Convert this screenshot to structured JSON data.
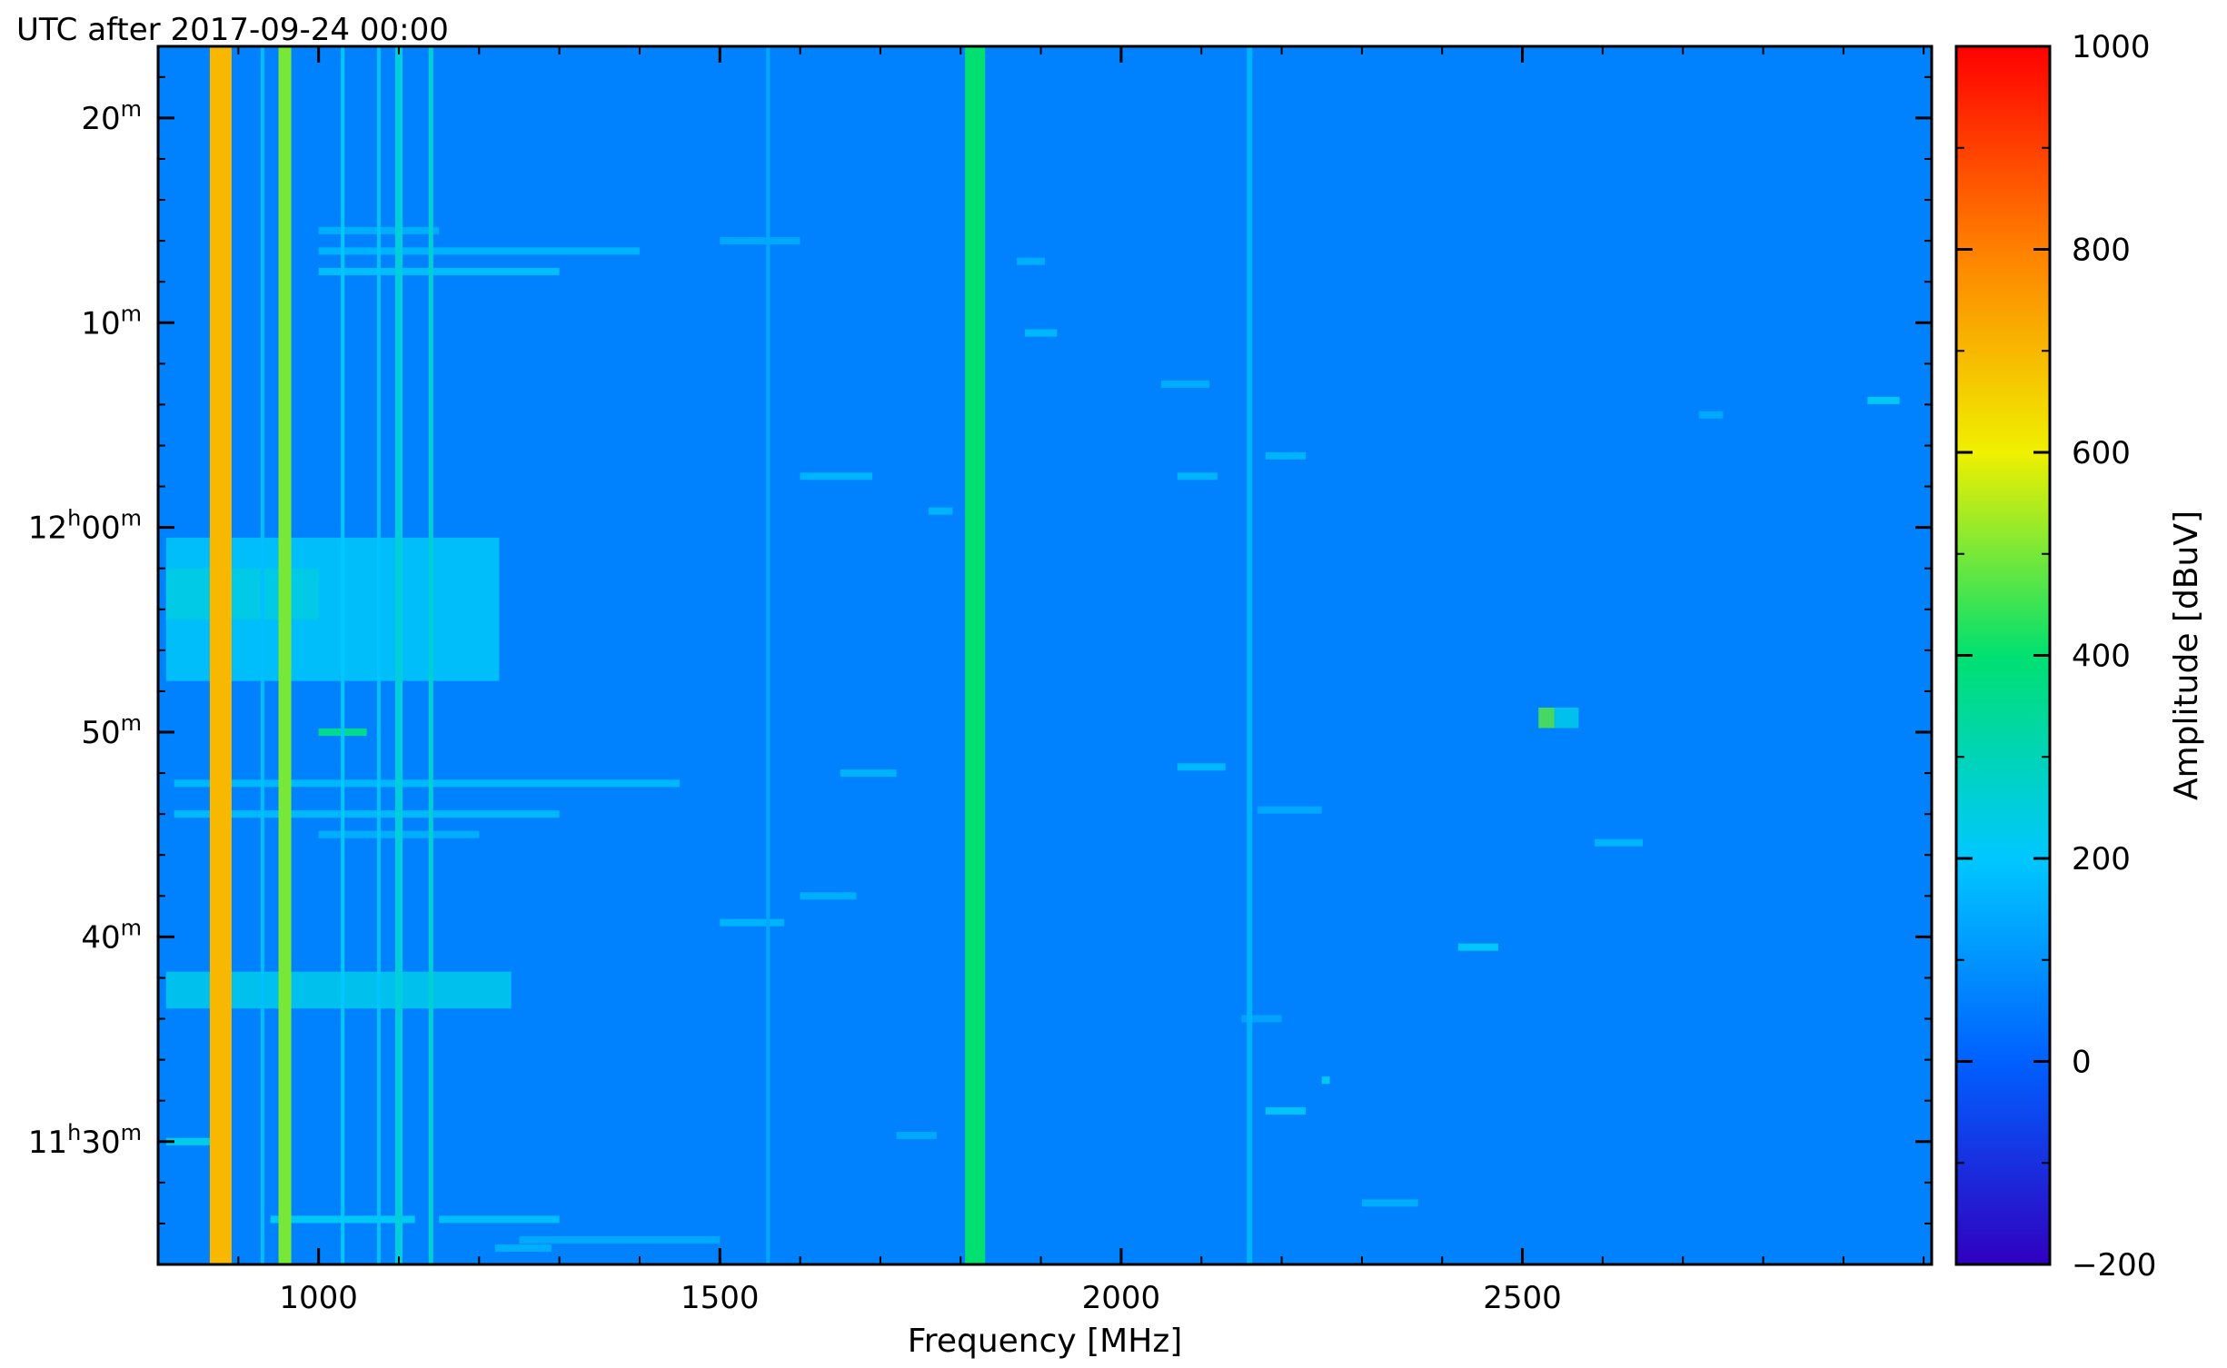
{
  "chart_data": {
    "type": "heatmap",
    "title": "UTC after 2017-09-24 00:00",
    "xlabel": "Frequency [MHz]",
    "ylabel": "",
    "xlim": [
      800,
      3010
    ],
    "ylim_minutes": [
      684,
      743.5
    ],
    "x_ticks": [
      1000,
      1500,
      2000,
      2500
    ],
    "x_tick_labels": [
      "1000",
      "1500",
      "2000",
      "2500"
    ],
    "y_ticks": [
      {
        "minute": 740,
        "label": "20",
        "sup": "m"
      },
      {
        "minute": 730,
        "label": "10",
        "sup": "m"
      },
      {
        "minute": 720,
        "label": "12",
        "sup": "h",
        "rest": "00",
        "sup2": "m"
      },
      {
        "minute": 710,
        "label": "50",
        "sup": "m"
      },
      {
        "minute": 700,
        "label": "40",
        "sup": "m"
      },
      {
        "minute": 690,
        "label": "11",
        "sup": "h",
        "rest": "30",
        "sup2": "m"
      }
    ],
    "colorbar": {
      "label": "Amplitude [dBuV]",
      "range": [
        -200,
        1000
      ],
      "ticks": [
        1000,
        800,
        600,
        400,
        200,
        0,
        -200
      ],
      "tick_labels": [
        "1000",
        "800",
        "600",
        "400",
        "200",
        "0",
        "−200"
      ],
      "colormap": [
        "#3000c0",
        "#0060ff",
        "#00c8ff",
        "#00e070",
        "#f0f000",
        "#ff8000",
        "#ff0000"
      ]
    },
    "background_amplitude": 65,
    "vertical_lines": [
      {
        "freq": 878,
        "width": 24,
        "amplitude": 700
      },
      {
        "freq": 958,
        "width": 14,
        "amplitude": 500
      },
      {
        "freq": 1818,
        "width": 22,
        "amplitude": 400
      },
      {
        "freq": 1100,
        "width": 8,
        "amplitude": 250
      },
      {
        "freq": 1140,
        "width": 5,
        "amplitude": 260
      },
      {
        "freq": 1030,
        "width": 4,
        "amplitude": 200
      },
      {
        "freq": 930,
        "width": 4,
        "amplitude": 180
      },
      {
        "freq": 2160,
        "width": 6,
        "amplitude": 160
      },
      {
        "freq": 1560,
        "width": 4,
        "amplitude": 140
      },
      {
        "freq": 1075,
        "width": 4,
        "amplitude": 190
      }
    ],
    "blocks": [
      {
        "f0": 810,
        "f1": 1225,
        "t0": 712.5,
        "t1": 719.5,
        "amplitude": 210
      },
      {
        "f0": 810,
        "f1": 1240,
        "t0": 696.5,
        "t1": 698.3,
        "amplitude": 230
      },
      {
        "f0": 810,
        "f1": 1000,
        "t0": 715.5,
        "t1": 718.0,
        "amplitude": 240
      },
      {
        "f0": 2520,
        "f1": 2540,
        "t0": 710.2,
        "t1": 711.2,
        "amplitude": 470
      },
      {
        "f0": 2540,
        "f1": 2570,
        "t0": 710.2,
        "t1": 711.2,
        "amplitude": 230
      }
    ],
    "h_segments": [
      {
        "f0": 1000,
        "f1": 1400,
        "t": 733.5,
        "amplitude": 160
      },
      {
        "f0": 1000,
        "f1": 1300,
        "t": 732.5,
        "amplitude": 180
      },
      {
        "f0": 1000,
        "f1": 1150,
        "t": 734.5,
        "amplitude": 150
      },
      {
        "f0": 820,
        "f1": 1450,
        "t": 707.5,
        "amplitude": 170
      },
      {
        "f0": 820,
        "f1": 1300,
        "t": 706.0,
        "amplitude": 170
      },
      {
        "f0": 1000,
        "f1": 1200,
        "t": 705.0,
        "amplitude": 150
      },
      {
        "f0": 940,
        "f1": 1120,
        "t": 686.2,
        "amplitude": 210
      },
      {
        "f0": 1150,
        "f1": 1300,
        "t": 686.2,
        "amplitude": 180
      },
      {
        "f0": 1250,
        "f1": 1500,
        "t": 685.2,
        "amplitude": 140
      },
      {
        "f0": 1000,
        "f1": 1060,
        "t": 710.0,
        "amplitude": 360
      },
      {
        "f0": 810,
        "f1": 870,
        "t": 690.0,
        "amplitude": 230
      },
      {
        "f0": 1650,
        "f1": 1720,
        "t": 708.0,
        "amplitude": 160
      },
      {
        "f0": 1600,
        "f1": 1690,
        "t": 722.5,
        "amplitude": 160
      },
      {
        "f0": 1600,
        "f1": 1670,
        "t": 702.0,
        "amplitude": 150
      },
      {
        "f0": 1500,
        "f1": 1580,
        "t": 700.7,
        "amplitude": 160
      },
      {
        "f0": 1500,
        "f1": 1600,
        "t": 734.0,
        "amplitude": 140
      },
      {
        "f0": 1880,
        "f1": 1920,
        "t": 729.5,
        "amplitude": 170
      },
      {
        "f0": 1870,
        "f1": 1905,
        "t": 733.0,
        "amplitude": 150
      },
      {
        "f0": 2050,
        "f1": 2110,
        "t": 727.0,
        "amplitude": 150
      },
      {
        "f0": 2070,
        "f1": 2120,
        "t": 722.5,
        "amplitude": 160
      },
      {
        "f0": 2070,
        "f1": 2130,
        "t": 708.3,
        "amplitude": 170
      },
      {
        "f0": 2180,
        "f1": 2230,
        "t": 723.5,
        "amplitude": 160
      },
      {
        "f0": 2170,
        "f1": 2250,
        "t": 706.2,
        "amplitude": 140
      },
      {
        "f0": 2250,
        "f1": 2260,
        "t": 693.0,
        "amplitude": 220
      },
      {
        "f0": 2180,
        "f1": 2230,
        "t": 691.5,
        "amplitude": 190
      },
      {
        "f0": 2300,
        "f1": 2370,
        "t": 687.0,
        "amplitude": 150
      },
      {
        "f0": 2420,
        "f1": 2470,
        "t": 699.5,
        "amplitude": 200
      },
      {
        "f0": 2590,
        "f1": 2650,
        "t": 704.6,
        "amplitude": 160
      },
      {
        "f0": 2720,
        "f1": 2750,
        "t": 725.5,
        "amplitude": 140
      },
      {
        "f0": 2930,
        "f1": 2970,
        "t": 726.2,
        "amplitude": 210
      },
      {
        "f0": 1760,
        "f1": 1790,
        "t": 720.8,
        "amplitude": 160
      },
      {
        "f0": 1720,
        "f1": 1770,
        "t": 690.3,
        "amplitude": 140
      },
      {
        "f0": 1220,
        "f1": 1290,
        "t": 684.8,
        "amplitude": 150
      },
      {
        "f0": 2150,
        "f1": 2200,
        "t": 696.0,
        "amplitude": 130
      }
    ]
  }
}
